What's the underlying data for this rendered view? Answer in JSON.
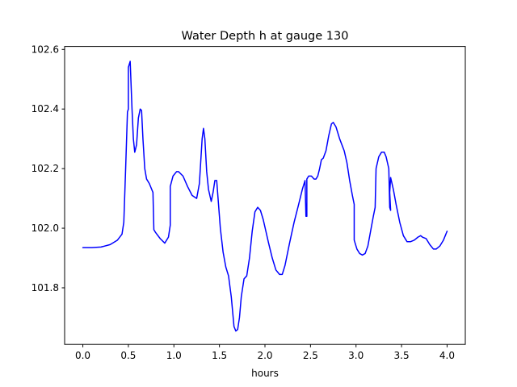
{
  "chart_data": {
    "type": "line",
    "title": "Water Depth h at gauge 130",
    "xlabel": "hours",
    "ylabel": "",
    "xlim": [
      -0.2,
      4.2
    ],
    "ylim": [
      101.61,
      102.61
    ],
    "x_ticks": [
      0.0,
      0.5,
      1.0,
      1.5,
      2.0,
      2.5,
      3.0,
      3.5,
      4.0
    ],
    "x_tick_labels": [
      "0.0",
      "0.5",
      "1.0",
      "1.5",
      "2.0",
      "2.5",
      "3.0",
      "3.5",
      "4.0"
    ],
    "y_ticks": [
      101.8,
      102.0,
      102.2,
      102.4,
      102.6
    ],
    "y_tick_labels": [
      "101.8",
      "102.0",
      "102.2",
      "102.4",
      "102.6"
    ],
    "grid": false,
    "legend": "none",
    "series": [
      {
        "color": "#0000ff",
        "points": [
          [
            0.0,
            101.935
          ],
          [
            0.1,
            101.935
          ],
          [
            0.2,
            101.937
          ],
          [
            0.3,
            101.945
          ],
          [
            0.38,
            101.96
          ],
          [
            0.43,
            101.98
          ],
          [
            0.45,
            102.02
          ],
          [
            0.47,
            102.2
          ],
          [
            0.49,
            102.39
          ],
          [
            0.5,
            102.4
          ],
          [
            0.5,
            102.54
          ],
          [
            0.52,
            102.56
          ],
          [
            0.54,
            102.4
          ],
          [
            0.555,
            102.3
          ],
          [
            0.57,
            102.255
          ],
          [
            0.59,
            102.28
          ],
          [
            0.61,
            102.37
          ],
          [
            0.63,
            102.4
          ],
          [
            0.645,
            102.395
          ],
          [
            0.66,
            102.3
          ],
          [
            0.68,
            102.2
          ],
          [
            0.7,
            102.165
          ],
          [
            0.73,
            102.15
          ],
          [
            0.77,
            102.12
          ],
          [
            0.78,
            101.995
          ],
          [
            0.8,
            101.985
          ],
          [
            0.85,
            101.965
          ],
          [
            0.9,
            101.95
          ],
          [
            0.94,
            101.97
          ],
          [
            0.96,
            102.01
          ],
          [
            0.96,
            102.14
          ],
          [
            0.99,
            102.175
          ],
          [
            1.03,
            102.19
          ],
          [
            1.05,
            102.19
          ],
          [
            1.1,
            102.175
          ],
          [
            1.15,
            102.14
          ],
          [
            1.2,
            102.11
          ],
          [
            1.25,
            102.1
          ],
          [
            1.28,
            102.15
          ],
          [
            1.31,
            102.3
          ],
          [
            1.325,
            102.335
          ],
          [
            1.34,
            102.3
          ],
          [
            1.36,
            102.19
          ],
          [
            1.38,
            102.13
          ],
          [
            1.41,
            102.09
          ],
          [
            1.43,
            102.12
          ],
          [
            1.45,
            102.16
          ],
          [
            1.47,
            102.16
          ],
          [
            1.48,
            102.12
          ],
          [
            1.51,
            102.0
          ],
          [
            1.54,
            101.92
          ],
          [
            1.57,
            101.87
          ],
          [
            1.6,
            101.84
          ],
          [
            1.63,
            101.77
          ],
          [
            1.66,
            101.67
          ],
          [
            1.68,
            101.655
          ],
          [
            1.7,
            101.66
          ],
          [
            1.72,
            101.7
          ],
          [
            1.74,
            101.77
          ],
          [
            1.77,
            101.83
          ],
          [
            1.8,
            101.84
          ],
          [
            1.83,
            101.9
          ],
          [
            1.86,
            101.99
          ],
          [
            1.89,
            102.055
          ],
          [
            1.92,
            102.07
          ],
          [
            1.95,
            102.06
          ],
          [
            1.98,
            102.03
          ],
          [
            2.01,
            101.99
          ],
          [
            2.04,
            101.95
          ],
          [
            2.08,
            101.9
          ],
          [
            2.12,
            101.86
          ],
          [
            2.16,
            101.845
          ],
          [
            2.19,
            101.845
          ],
          [
            2.22,
            101.875
          ],
          [
            2.27,
            101.95
          ],
          [
            2.32,
            102.02
          ],
          [
            2.37,
            102.08
          ],
          [
            2.41,
            102.13
          ],
          [
            2.43,
            102.15
          ],
          [
            2.44,
            102.16
          ],
          [
            2.45,
            102.04
          ],
          [
            2.46,
            102.04
          ],
          [
            2.46,
            102.165
          ],
          [
            2.48,
            102.175
          ],
          [
            2.51,
            102.175
          ],
          [
            2.54,
            102.165
          ],
          [
            2.56,
            102.165
          ],
          [
            2.58,
            102.175
          ],
          [
            2.6,
            102.2
          ],
          [
            2.62,
            102.23
          ],
          [
            2.64,
            102.235
          ],
          [
            2.67,
            102.26
          ],
          [
            2.7,
            102.31
          ],
          [
            2.73,
            102.35
          ],
          [
            2.75,
            102.355
          ],
          [
            2.78,
            102.34
          ],
          [
            2.82,
            102.3
          ],
          [
            2.87,
            102.26
          ],
          [
            2.9,
            102.22
          ],
          [
            2.93,
            102.16
          ],
          [
            2.96,
            102.11
          ],
          [
            2.98,
            102.08
          ],
          [
            2.98,
            101.96
          ],
          [
            3.01,
            101.93
          ],
          [
            3.04,
            101.915
          ],
          [
            3.07,
            101.91
          ],
          [
            3.1,
            101.915
          ],
          [
            3.13,
            101.94
          ],
          [
            3.16,
            101.99
          ],
          [
            3.19,
            102.04
          ],
          [
            3.21,
            102.07
          ],
          [
            3.22,
            102.2
          ],
          [
            3.25,
            102.24
          ],
          [
            3.28,
            102.255
          ],
          [
            3.31,
            102.255
          ],
          [
            3.33,
            102.24
          ],
          [
            3.36,
            102.2
          ],
          [
            3.37,
            102.07
          ],
          [
            3.38,
            102.06
          ],
          [
            3.37,
            102.12
          ],
          [
            3.38,
            102.17
          ],
          [
            3.41,
            102.13
          ],
          [
            3.44,
            102.08
          ],
          [
            3.48,
            102.02
          ],
          [
            3.52,
            101.975
          ],
          [
            3.56,
            101.955
          ],
          [
            3.6,
            101.955
          ],
          [
            3.64,
            101.96
          ],
          [
            3.68,
            101.97
          ],
          [
            3.71,
            101.975
          ],
          [
            3.73,
            101.97
          ],
          [
            3.77,
            101.965
          ],
          [
            3.81,
            101.945
          ],
          [
            3.85,
            101.93
          ],
          [
            3.88,
            101.93
          ],
          [
            3.92,
            101.94
          ],
          [
            3.96,
            101.96
          ],
          [
            4.0,
            101.99
          ]
        ]
      }
    ]
  }
}
